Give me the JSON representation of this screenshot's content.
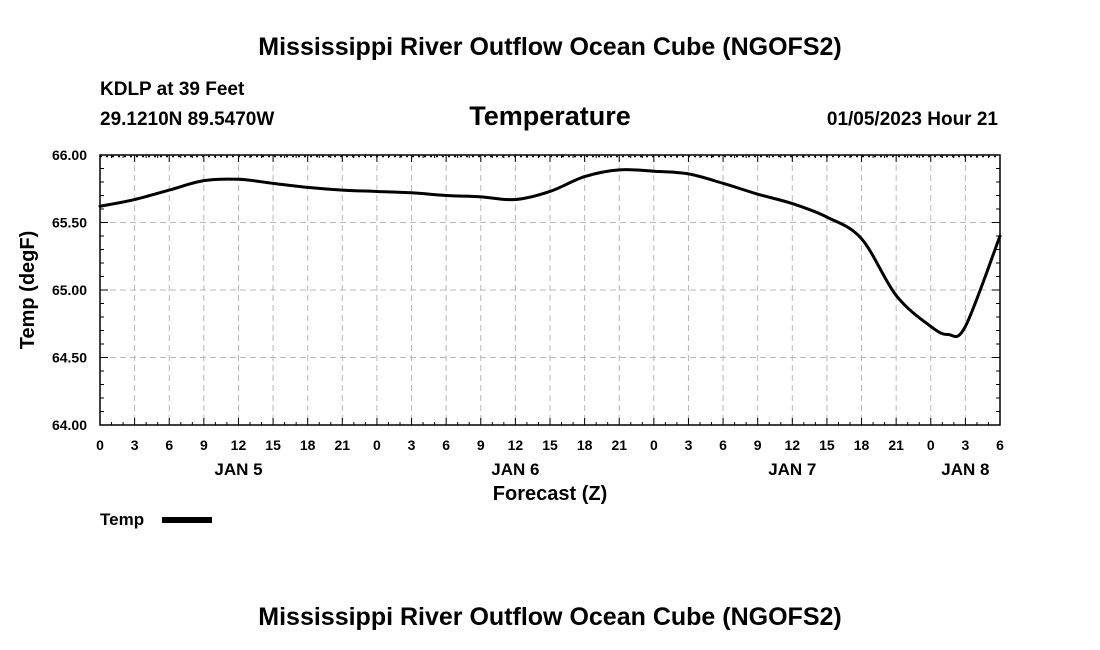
{
  "chart_data": {
    "type": "line",
    "title": "Mississippi River Outflow Ocean Cube (NGOFS2)",
    "subtitle": "Temperature",
    "station": "KDLP at 39 Feet",
    "location": "29.1210N  89.5470W",
    "run_time": "01/05/2023 Hour 21",
    "xlabel": "Forecast (Z)",
    "ylabel": "Temp (degF)",
    "ylim": [
      64.0,
      66.0
    ],
    "y_ticks": [
      "64.00",
      "64.50",
      "65.00",
      "65.50",
      "66.00"
    ],
    "x_range_hours": [
      0,
      78
    ],
    "x_tick_labels": [
      "0",
      "3",
      "6",
      "9",
      "12",
      "15",
      "18",
      "21",
      "0",
      "3",
      "6",
      "9",
      "12",
      "15",
      "18",
      "21",
      "0",
      "3",
      "6",
      "9",
      "12",
      "15",
      "18",
      "21",
      "0",
      "3",
      "6"
    ],
    "day_labels": [
      {
        "label": "JAN 5",
        "hour": 12
      },
      {
        "label": "JAN 6",
        "hour": 36
      },
      {
        "label": "JAN 7",
        "hour": 60
      },
      {
        "label": "JAN 8",
        "hour": 75
      }
    ],
    "grid": true,
    "legend": "bottom-left",
    "series": [
      {
        "name": "Temp",
        "x": [
          0,
          3,
          6,
          9,
          12,
          15,
          18,
          21,
          24,
          27,
          30,
          33,
          36,
          39,
          42,
          45,
          48,
          51,
          54,
          57,
          60,
          63,
          66,
          69,
          72,
          73.5,
          75,
          78
        ],
        "values": [
          65.62,
          65.67,
          65.74,
          65.81,
          65.82,
          65.79,
          65.76,
          65.74,
          65.73,
          65.72,
          65.7,
          65.69,
          65.67,
          65.73,
          65.84,
          65.89,
          65.88,
          65.86,
          65.79,
          65.71,
          65.64,
          65.54,
          65.38,
          64.96,
          64.73,
          64.67,
          64.73,
          65.4
        ]
      }
    ]
  },
  "footer_title": "Mississippi River Outflow Ocean Cube (NGOFS2)"
}
